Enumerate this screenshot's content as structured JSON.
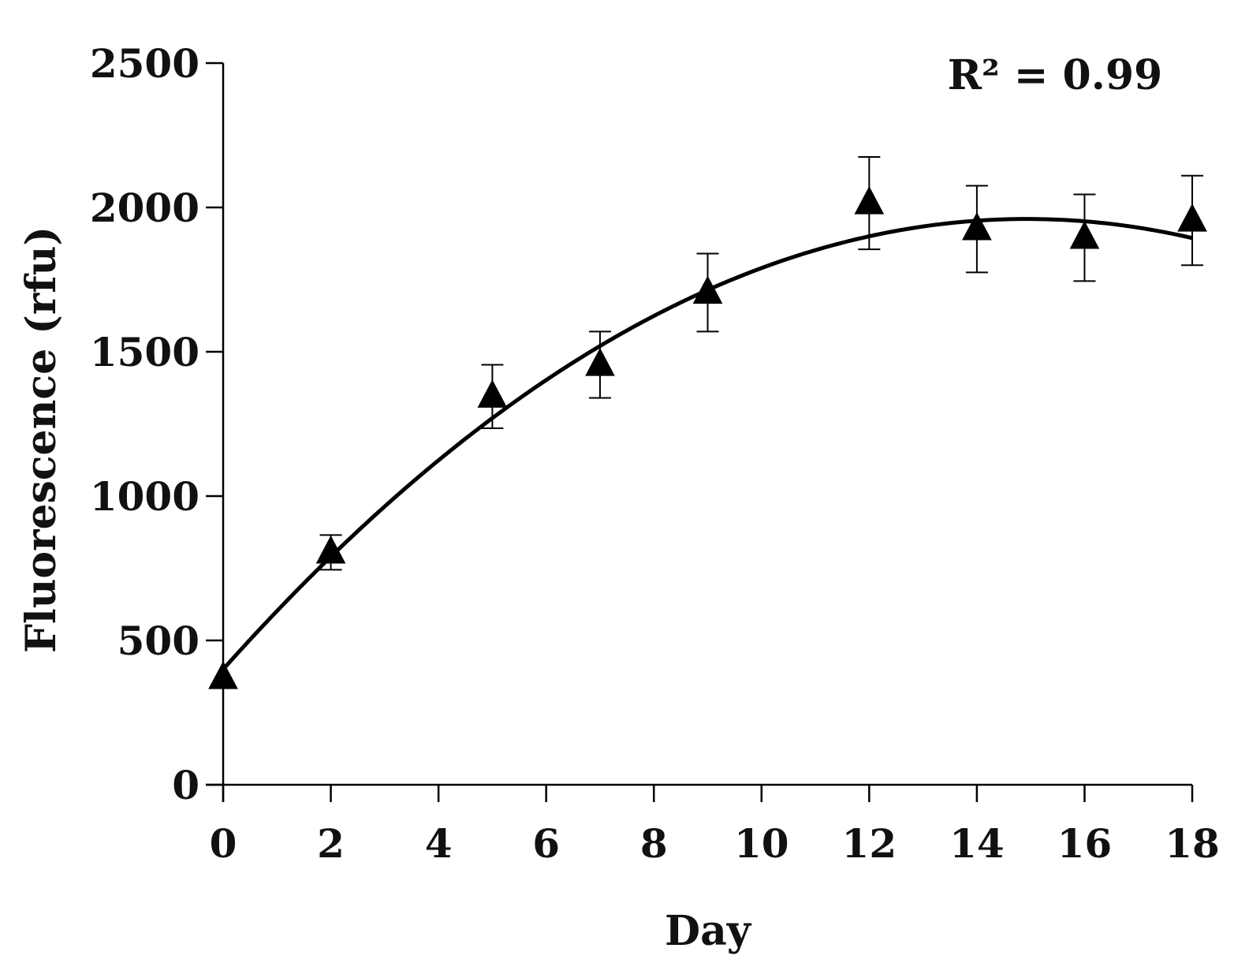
{
  "chart_data": {
    "type": "scatter",
    "title": "",
    "xlabel": "Day",
    "ylabel": "Fluorescence (rfu)",
    "xlim": [
      0,
      18
    ],
    "ylim": [
      0,
      2500
    ],
    "xticks": [
      0,
      2,
      4,
      6,
      8,
      10,
      12,
      14,
      16,
      18
    ],
    "yticks": [
      0,
      500,
      1000,
      1500,
      2000,
      2500
    ],
    "grid": false,
    "legend": "none",
    "annotation": {
      "text": "R² = 0.99"
    },
    "series": [
      {
        "marker": "triangle",
        "color": "#000000",
        "x": [
          0,
          2,
          5,
          7,
          9,
          12,
          14,
          16,
          18
        ],
        "y": [
          370,
          805,
          1345,
          1455,
          1705,
          2015,
          1925,
          1895,
          1955
        ],
        "error": [
          0,
          60,
          110,
          115,
          135,
          160,
          150,
          150,
          155
        ]
      }
    ],
    "trendline": {
      "type": "polynomial",
      "order": 2,
      "color": "#000000",
      "coefficients": [
        400,
        209,
        -7
      ]
    }
  }
}
